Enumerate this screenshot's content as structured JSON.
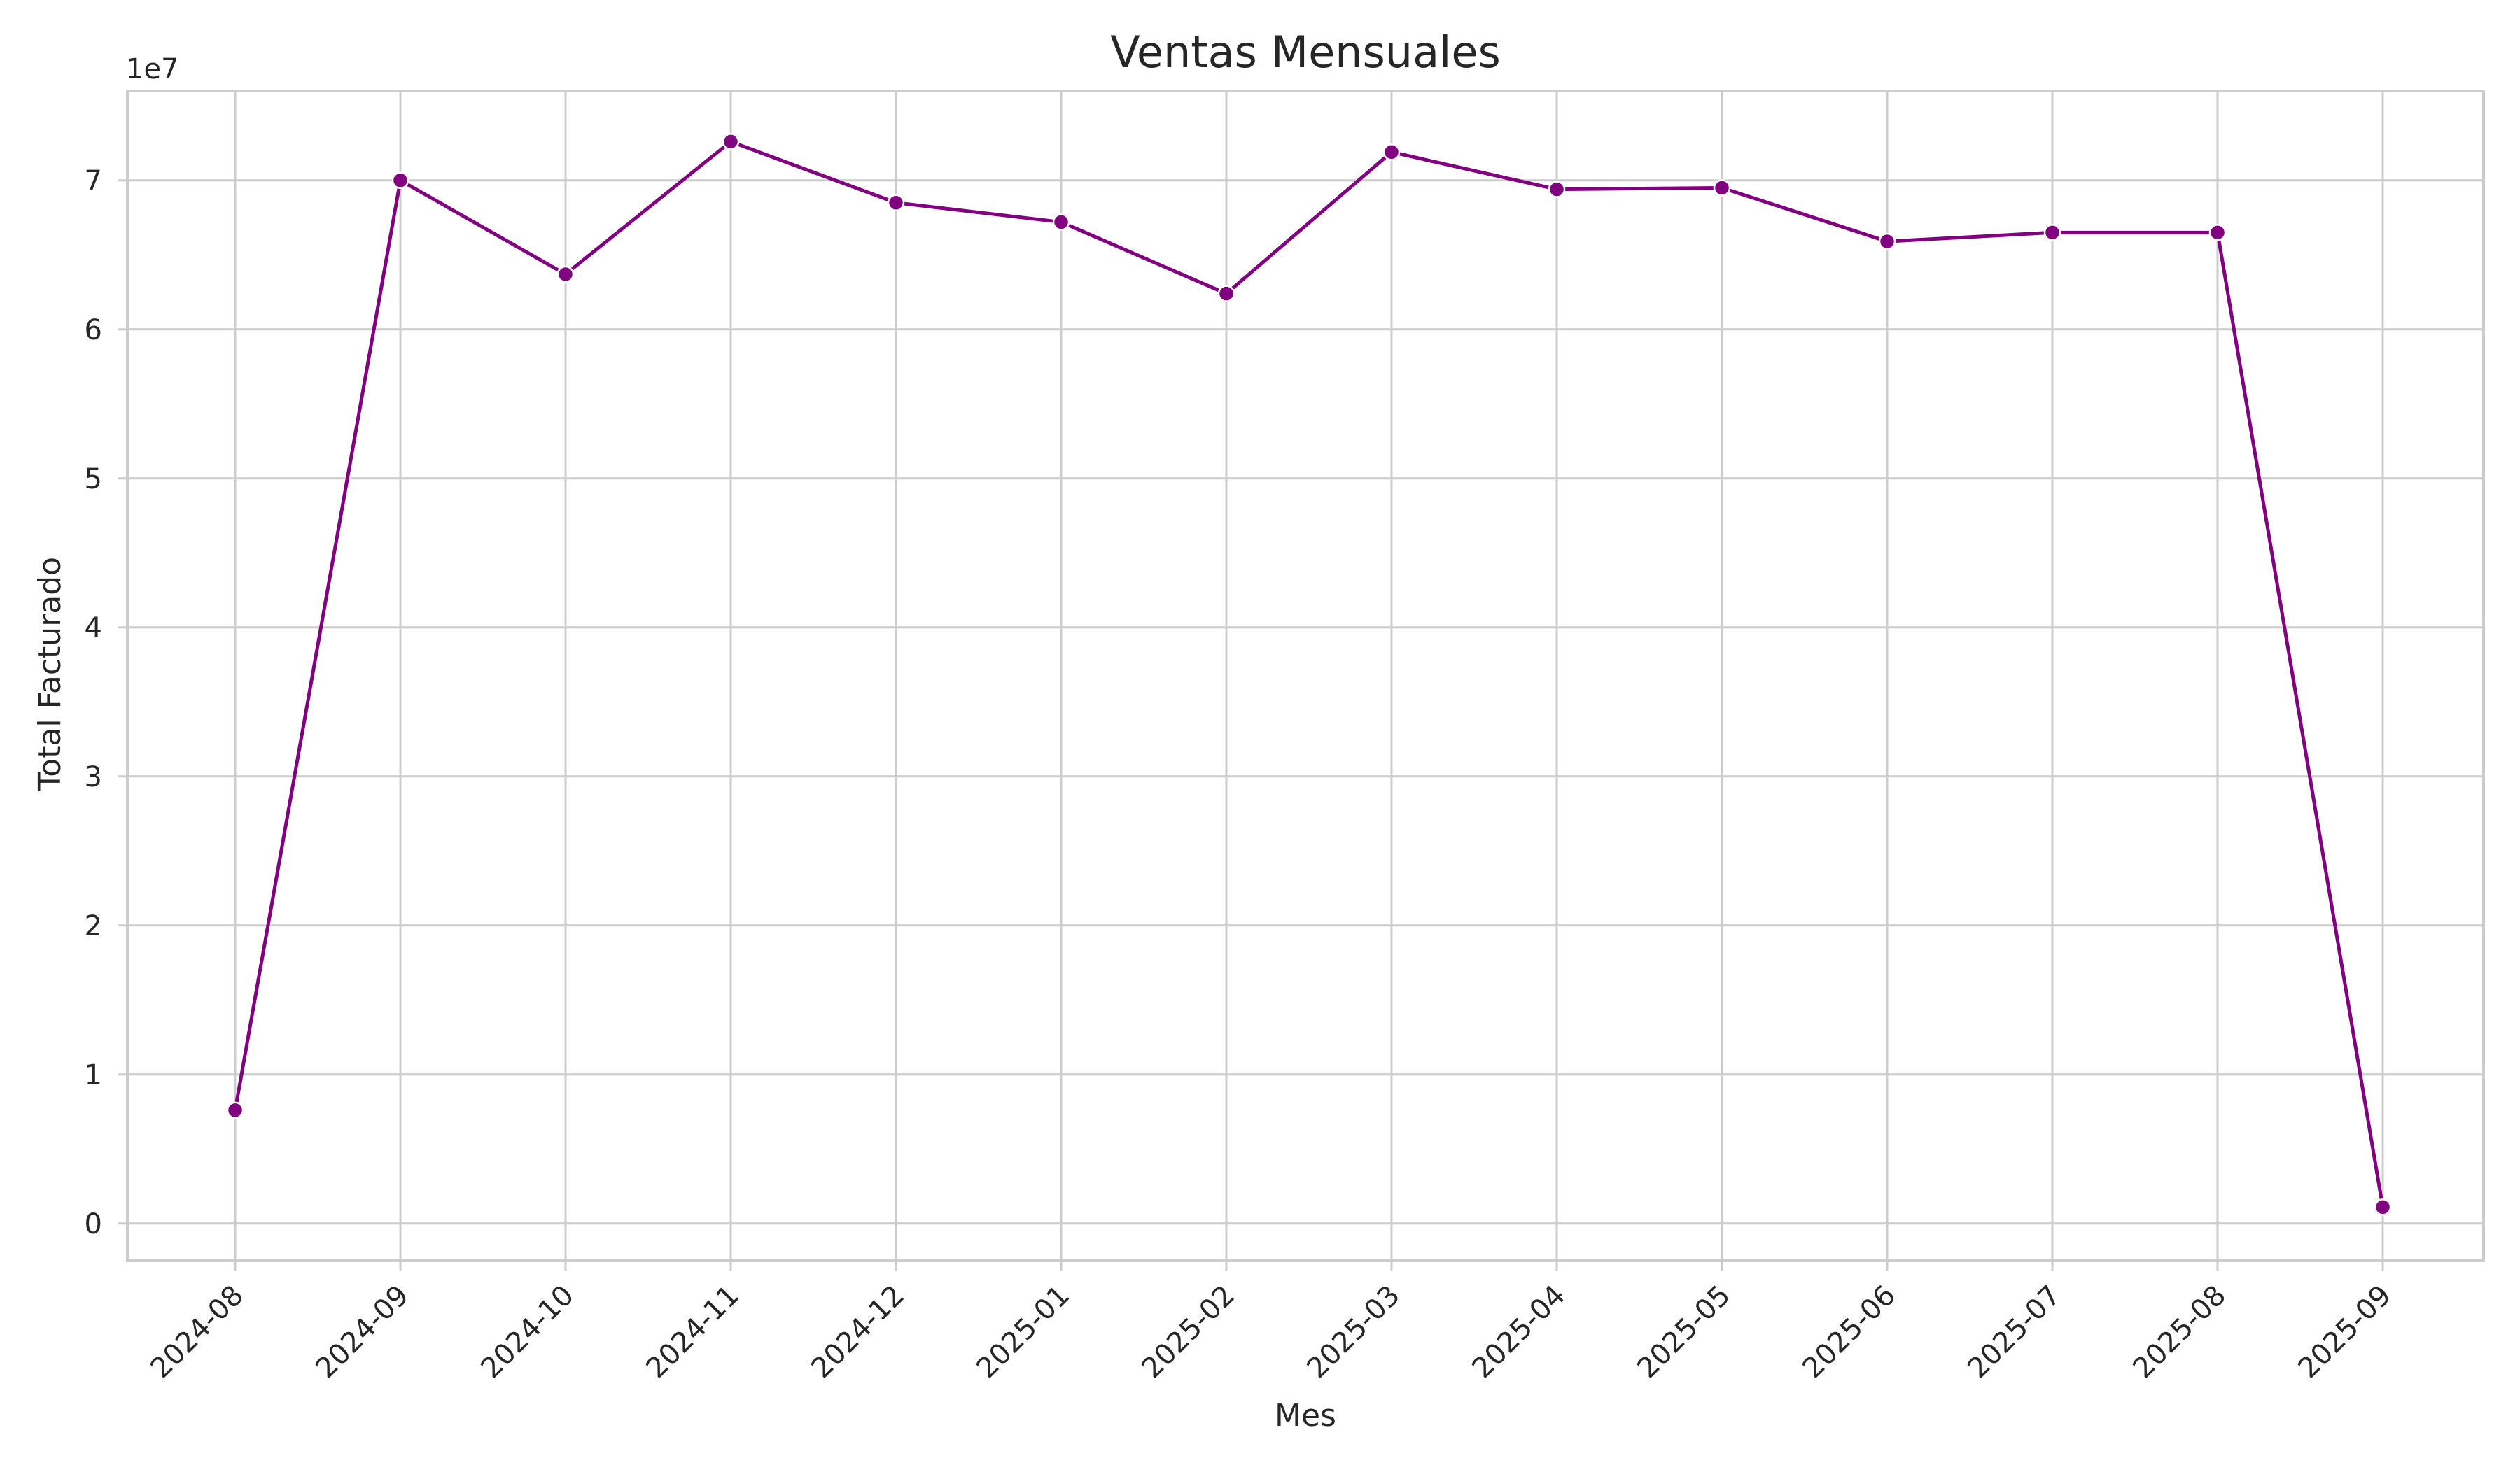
{
  "chart_data": {
    "type": "line",
    "title": "Ventas Mensuales",
    "xlabel": "Mes",
    "ylabel": "Total Facturado",
    "y_multiplier_label": "1e7",
    "ylim": [
      -2500000,
      76000000
    ],
    "yticks": [
      0,
      10000000,
      20000000,
      30000000,
      40000000,
      50000000,
      60000000,
      70000000
    ],
    "ytick_labels": [
      "0",
      "1",
      "2",
      "3",
      "4",
      "5",
      "6",
      "7"
    ],
    "categories": [
      "2024-08",
      "2024-09",
      "2024-10",
      "2024-11",
      "2024-12",
      "2025-01",
      "2025-02",
      "2025-03",
      "2025-04",
      "2025-05",
      "2025-06",
      "2025-07",
      "2025-08",
      "2025-09"
    ],
    "series": [
      {
        "values": [
          7600000,
          70000000,
          63700000,
          72600000,
          68500000,
          67200000,
          62400000,
          71900000,
          69400000,
          69500000,
          65900000,
          66500000,
          66500000,
          1100000
        ],
        "color": "#800080"
      }
    ],
    "grid": true,
    "x_tick_rotation": 45,
    "colors": {
      "grid": "#cccccc",
      "spine": "#cccccc",
      "text": "#262626",
      "background": "#ffffff"
    }
  }
}
